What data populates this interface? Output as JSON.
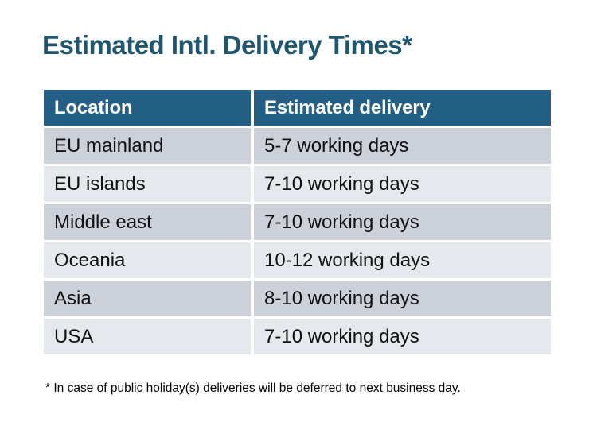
{
  "page": {
    "title": "Estimated Intl. Delivery Times*",
    "footnote": "* In case of public holiday(s) deliveries will be deferred to next business day."
  },
  "table": {
    "headers": {
      "location": "Location",
      "delivery": "Estimated delivery"
    },
    "rows": [
      {
        "location": "EU mainland",
        "delivery": "5-7 working days"
      },
      {
        "location": "EU islands",
        "delivery": "7-10 working days"
      },
      {
        "location": "Middle east",
        "delivery": "7-10 working days"
      },
      {
        "location": "Oceania",
        "delivery": "10-12 working days"
      },
      {
        "location": "Asia",
        "delivery": "8-10 working days"
      },
      {
        "location": "USA",
        "delivery": "7-10 working days"
      }
    ]
  },
  "colors": {
    "title_text": "#1E5670",
    "header_bg": "#235F85",
    "header_text": "#FFFFFF",
    "row_dark": "#CCD1D9",
    "row_light": "#E5E8EC",
    "cell_text": "#111111",
    "footnote_text": "#000000",
    "background": "#FFFFFF"
  }
}
